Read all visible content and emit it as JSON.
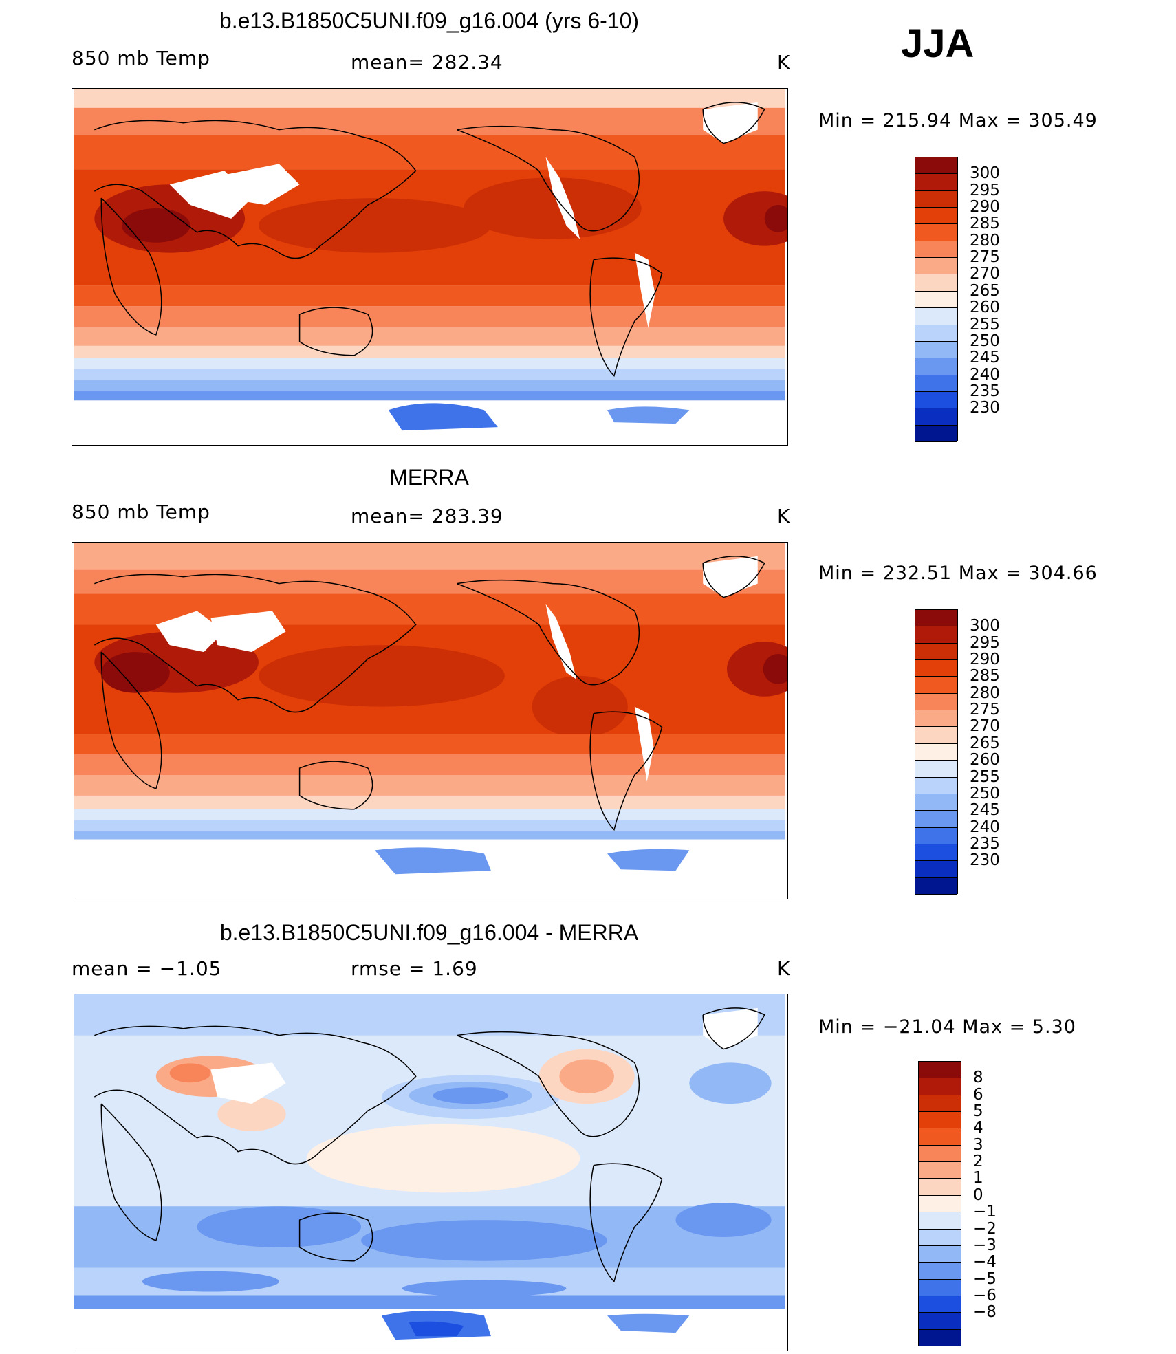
{
  "season": "JJA",
  "panels": [
    {
      "title": "b.e13.B1850C5UNI.f09_g16.004 (yrs 6-10)",
      "left_label": "850 mb Temp",
      "center_label": "mean= 282.34",
      "units": "K",
      "minmax": "Min = 215.94 Max = 305.49"
    },
    {
      "title": "MERRA",
      "left_label": "850 mb Temp",
      "center_label": "mean= 283.39",
      "units": "K",
      "minmax": "Min = 232.51 Max = 304.66"
    },
    {
      "title": "b.e13.B1850C5UNI.f09_g16.004 - MERRA",
      "left_label": "mean =   −1.05",
      "center_label": "rmse =     1.69",
      "units": "K",
      "minmax": "Min = −21.04 Max =     5.30"
    }
  ],
  "chart_data": [
    {
      "type": "heatmap",
      "title": "b.e13.B1850C5UNI.f09_g16.004 (yrs 6-10)",
      "variable": "850 mb Temp",
      "units": "K",
      "mean": 282.34,
      "min": 215.94,
      "max": 305.49,
      "season": "JJA",
      "levels": [
        "300",
        "295",
        "290",
        "285",
        "280",
        "275",
        "270",
        "265",
        "260",
        "255",
        "250",
        "245",
        "240",
        "235",
        "230"
      ],
      "colors": [
        "#8b0a0a",
        "#b01a08",
        "#cc2e06",
        "#e24008",
        "#f05a20",
        "#f8845a",
        "#fbaa88",
        "#fdd6c2",
        "#fff0e6",
        "#dce9fa",
        "#b9d3fa",
        "#92b8f5",
        "#6a97f0",
        "#3f73ea",
        "#1c4ee0",
        "#0a2ec0",
        "#001590"
      ]
    },
    {
      "type": "heatmap",
      "title": "MERRA",
      "variable": "850 mb Temp",
      "units": "K",
      "mean": 283.39,
      "min": 232.51,
      "max": 304.66,
      "season": "JJA",
      "levels": [
        "300",
        "295",
        "290",
        "285",
        "280",
        "275",
        "270",
        "265",
        "260",
        "255",
        "250",
        "245",
        "240",
        "235",
        "230"
      ],
      "colors": [
        "#8b0a0a",
        "#b01a08",
        "#cc2e06",
        "#e24008",
        "#f05a20",
        "#f8845a",
        "#fbaa88",
        "#fdd6c2",
        "#fff0e6",
        "#dce9fa",
        "#b9d3fa",
        "#92b8f5",
        "#6a97f0",
        "#3f73ea",
        "#1c4ee0",
        "#0a2ec0",
        "#001590"
      ]
    },
    {
      "type": "heatmap",
      "title": "b.e13.B1850C5UNI.f09_g16.004 - MERRA",
      "units": "K",
      "mean": -1.05,
      "rmse": 1.69,
      "min": -21.04,
      "max": 5.3,
      "season": "JJA",
      "levels": [
        "8",
        "6",
        "5",
        "4",
        "3",
        "2",
        "1",
        "0",
        "−1",
        "−2",
        "−3",
        "−4",
        "−5",
        "−6",
        "−8"
      ],
      "colors": [
        "#8b0a0a",
        "#b01a08",
        "#cc2e06",
        "#e24008",
        "#f05a20",
        "#f8845a",
        "#fbaa88",
        "#fdd6c2",
        "#fff0e6",
        "#dce9fa",
        "#b9d3fa",
        "#92b8f5",
        "#6a97f0",
        "#3f73ea",
        "#1c4ee0",
        "#0a2ec0",
        "#001590"
      ]
    }
  ]
}
